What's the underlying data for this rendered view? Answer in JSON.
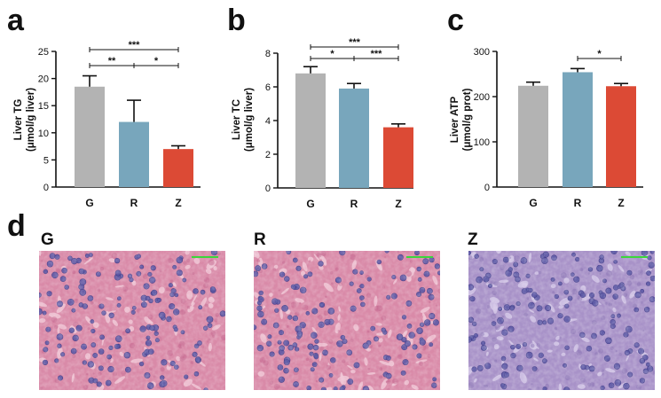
{
  "figure": {
    "panel_letters": [
      "a",
      "b",
      "c",
      "d"
    ]
  },
  "colors": {
    "G": "#b3b3b3",
    "R": "#78a6bc",
    "Z": "#dc4a35",
    "he_pink": "#d98aa8",
    "he_purple": "#a892c8",
    "nucleus": "#5d5aa6",
    "scale_bar": "#3bd63b"
  },
  "chart_data": [
    {
      "id": "a",
      "type": "bar",
      "ylabel_line1": "Liver TG",
      "ylabel_line2": "(μmol/g liver)",
      "categories": [
        "G",
        "R",
        "Z"
      ],
      "values": [
        18.5,
        12.0,
        7.0
      ],
      "errors": [
        2.0,
        4.0,
        0.6
      ],
      "ylim": [
        0,
        25
      ],
      "yticks": [
        0,
        5,
        10,
        15,
        20,
        25
      ],
      "significance": [
        {
          "from": 0,
          "to": 2,
          "label": "***",
          "level": 2
        },
        {
          "from": 0,
          "to": 1,
          "label": "**",
          "level": 1
        },
        {
          "from": 1,
          "to": 2,
          "label": "*",
          "level": 1
        }
      ]
    },
    {
      "id": "b",
      "type": "bar",
      "ylabel_line1": "Liver TC",
      "ylabel_line2": "(μmol/g liver)",
      "categories": [
        "G",
        "R",
        "Z"
      ],
      "values": [
        6.8,
        5.9,
        3.6
      ],
      "errors": [
        0.4,
        0.3,
        0.2
      ],
      "ylim": [
        0,
        8
      ],
      "yticks": [
        0,
        2,
        4,
        6,
        8
      ],
      "significance": [
        {
          "from": 0,
          "to": 2,
          "label": "***",
          "level": 2
        },
        {
          "from": 0,
          "to": 1,
          "label": "*",
          "level": 1
        },
        {
          "from": 1,
          "to": 2,
          "label": "***",
          "level": 1
        }
      ]
    },
    {
      "id": "c",
      "type": "bar",
      "ylabel_line1": "Liver ATP",
      "ylabel_line2": "(μmol/g prot)",
      "categories": [
        "G",
        "R",
        "Z"
      ],
      "values": [
        224,
        254,
        223
      ],
      "errors": [
        8,
        8,
        6
      ],
      "ylim": [
        0,
        300
      ],
      "yticks": [
        0,
        100,
        200,
        300
      ],
      "significance": [
        {
          "from": 1,
          "to": 2,
          "label": "*",
          "level": 1
        }
      ]
    }
  ],
  "micrographs": [
    {
      "label": "G",
      "stain": "pink"
    },
    {
      "label": "R",
      "stain": "pink"
    },
    {
      "label": "Z",
      "stain": "purple"
    }
  ]
}
